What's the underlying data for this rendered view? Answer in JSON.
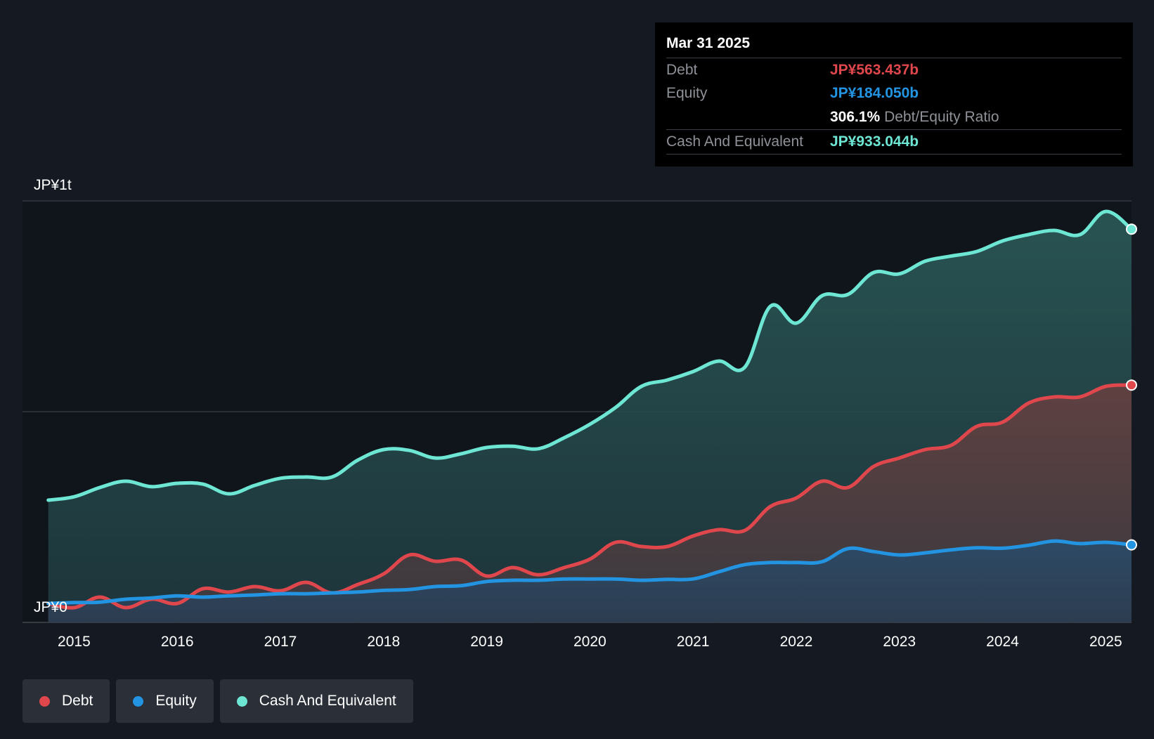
{
  "colors": {
    "background": "#151a22",
    "debt": "#e0474c",
    "equity": "#2294e2",
    "cash": "#6ee6d4"
  },
  "tooltip": {
    "date": "Mar 31 2025",
    "debt_label": "Debt",
    "debt_value": "JP¥563.437b",
    "equity_label": "Equity",
    "equity_value": "JP¥184.050b",
    "ratio_value": "306.1%",
    "ratio_label": "Debt/Equity Ratio",
    "cash_label": "Cash And Equivalent",
    "cash_value": "JP¥933.044b"
  },
  "legend": {
    "debt": "Debt",
    "equity": "Equity",
    "cash": "Cash And Equivalent"
  },
  "chart_data": {
    "type": "area",
    "title": "",
    "xlabel": "",
    "ylabel": "",
    "ylim": [
      0,
      1000
    ],
    "y_unit": "JP¥ billions",
    "y_tick_labels": [
      {
        "value": 1000,
        "label": "JP¥1t"
      },
      {
        "value": 0,
        "label": "JP¥0"
      }
    ],
    "xlim": [
      2014.5,
      2025.25
    ],
    "x_ticks": [
      2015,
      2016,
      2017,
      2018,
      2019,
      2020,
      2021,
      2022,
      2023,
      2024,
      2025
    ],
    "x_tick_labels": [
      "2015",
      "2016",
      "2017",
      "2018",
      "2019",
      "2020",
      "2021",
      "2022",
      "2023",
      "2024",
      "2025"
    ],
    "series": [
      {
        "name": "Cash And Equivalent",
        "key": "cash",
        "x": [
          2014.75,
          2015.0,
          2015.25,
          2015.5,
          2015.75,
          2016.0,
          2016.25,
          2016.5,
          2016.75,
          2017.0,
          2017.25,
          2017.5,
          2017.75,
          2018.0,
          2018.25,
          2018.5,
          2018.75,
          2019.0,
          2019.25,
          2019.5,
          2019.75,
          2020.0,
          2020.25,
          2020.5,
          2020.75,
          2021.0,
          2021.25,
          2021.5,
          2021.75,
          2022.0,
          2022.25,
          2022.5,
          2022.75,
          2023.0,
          2023.25,
          2023.5,
          2023.75,
          2024.0,
          2024.25,
          2024.5,
          2024.75,
          2025.0,
          2025.25
        ],
        "values": [
          290,
          298,
          320,
          335,
          322,
          330,
          328,
          305,
          325,
          342,
          345,
          345,
          385,
          410,
          408,
          390,
          400,
          415,
          418,
          412,
          438,
          470,
          510,
          560,
          575,
          595,
          620,
          605,
          750,
          710,
          775,
          778,
          830,
          827,
          857,
          869,
          880,
          905,
          920,
          930,
          920,
          975,
          933
        ]
      },
      {
        "name": "Debt",
        "key": "debt",
        "x": [
          2014.75,
          2015.0,
          2015.25,
          2015.5,
          2015.75,
          2016.0,
          2016.25,
          2016.5,
          2016.75,
          2017.0,
          2017.25,
          2017.5,
          2017.75,
          2018.0,
          2018.25,
          2018.5,
          2018.75,
          2019.0,
          2019.25,
          2019.5,
          2019.75,
          2020.0,
          2020.25,
          2020.5,
          2020.75,
          2021.0,
          2021.25,
          2021.5,
          2021.75,
          2022.0,
          2022.25,
          2022.5,
          2022.75,
          2023.0,
          2023.25,
          2023.5,
          2023.75,
          2024.0,
          2024.25,
          2024.5,
          2024.75,
          2025.0,
          2025.25
        ],
        "values": [
          45,
          35,
          60,
          35,
          55,
          45,
          80,
          72,
          85,
          75,
          95,
          70,
          90,
          115,
          160,
          145,
          148,
          110,
          130,
          113,
          130,
          150,
          190,
          180,
          180,
          205,
          220,
          218,
          275,
          295,
          335,
          320,
          370,
          390,
          410,
          420,
          465,
          475,
          520,
          535,
          535,
          560,
          563
        ]
      },
      {
        "name": "Equity",
        "key": "equity",
        "x": [
          2014.75,
          2015.0,
          2015.25,
          2015.5,
          2015.75,
          2016.0,
          2016.25,
          2016.5,
          2016.75,
          2017.0,
          2017.25,
          2017.5,
          2017.75,
          2018.0,
          2018.25,
          2018.5,
          2018.75,
          2019.0,
          2019.25,
          2019.5,
          2019.75,
          2020.0,
          2020.25,
          2020.5,
          2020.75,
          2021.0,
          2021.25,
          2021.5,
          2021.75,
          2022.0,
          2022.25,
          2022.5,
          2022.75,
          2023.0,
          2023.25,
          2023.5,
          2023.75,
          2024.0,
          2024.25,
          2024.5,
          2024.75,
          2025.0,
          2025.25
        ],
        "values": [
          45,
          47,
          48,
          55,
          58,
          63,
          60,
          63,
          65,
          68,
          68,
          70,
          72,
          76,
          78,
          85,
          87,
          97,
          100,
          100,
          103,
          103,
          103,
          100,
          102,
          103,
          120,
          137,
          142,
          142,
          144,
          175,
          168,
          160,
          165,
          172,
          177,
          176,
          183,
          193,
          187,
          190,
          184
        ]
      }
    ]
  }
}
